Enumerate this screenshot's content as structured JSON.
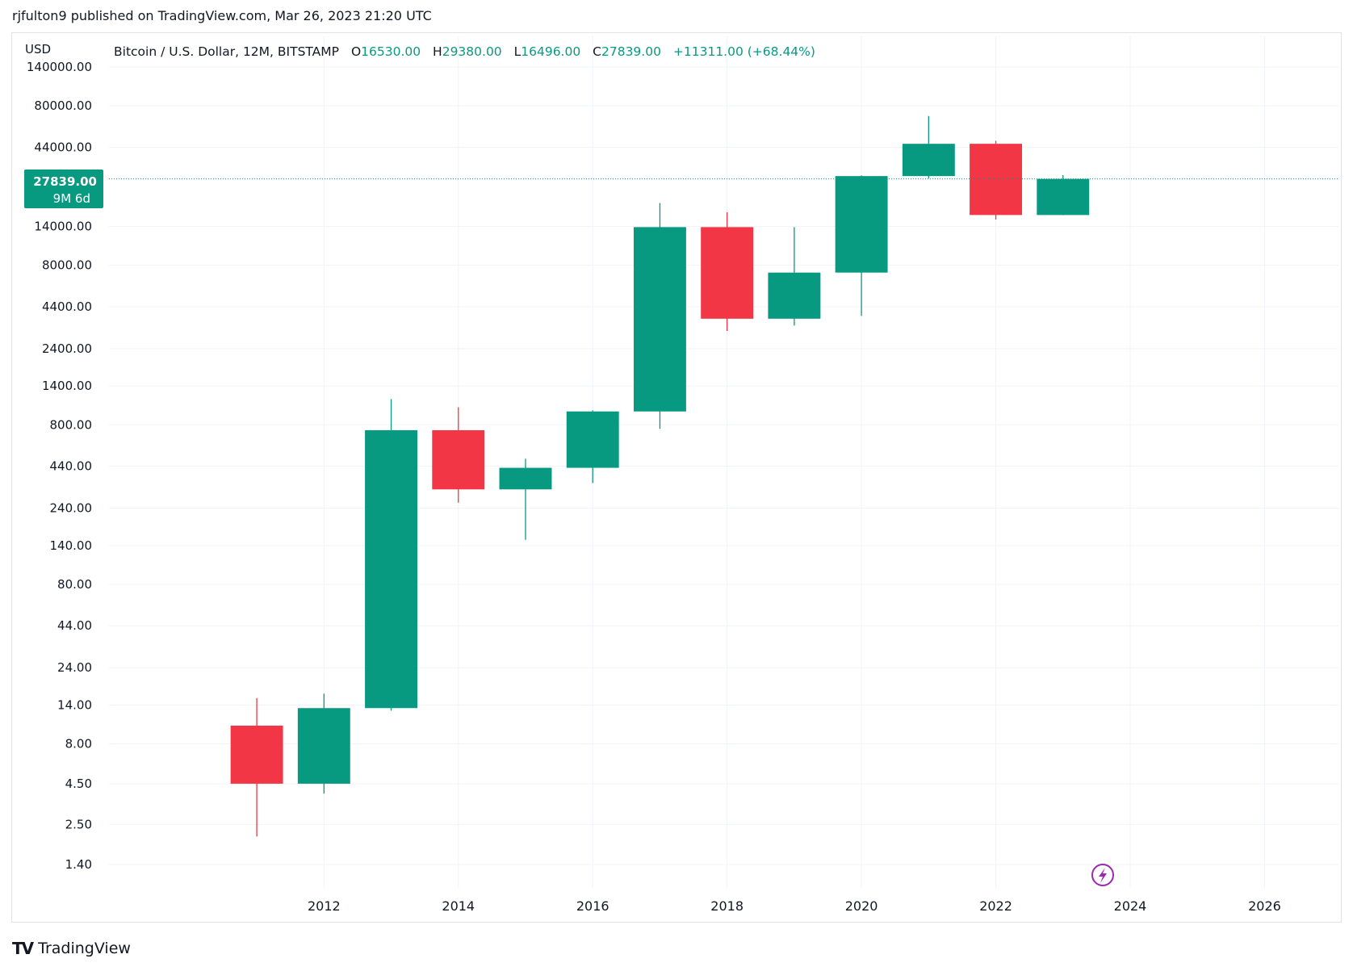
{
  "header": {
    "published": "rjfulton9 published on TradingView.com, Mar 26, 2023 21:20 UTC"
  },
  "legend": {
    "symbol": "Bitcoin / U.S. Dollar, 12M, BITSTAMP",
    "o_label": "O",
    "o_value": "16530.00",
    "h_label": "H",
    "h_value": "29380.00",
    "l_label": "L",
    "l_value": "16496.00",
    "c_label": "C",
    "c_value": "27839.00",
    "change": "+11311.00 (+68.44%)"
  },
  "price_tag": {
    "value": "27839.00",
    "countdown": "9M 6d"
  },
  "footer": {
    "brand": "TradingView",
    "logo_text": "TV"
  },
  "colors": {
    "up": "#089981",
    "down": "#f23645",
    "grid": "#f0f3fa",
    "axis_text": "#131722",
    "lightning": "#9c27b0"
  },
  "chart_data": {
    "type": "candlestick",
    "ylabel": "USD",
    "scale": "log",
    "ylim": [
      1.0,
      140000
    ],
    "xlim": [
      2008.8,
      2027.1
    ],
    "y_ticks": [
      140000,
      80000,
      44000,
      14000,
      8000,
      4400,
      2400,
      1400,
      800,
      440,
      240,
      140,
      80,
      44,
      24,
      14,
      8,
      4.5,
      2.5,
      1.4
    ],
    "y_tick_labels": [
      "140000.00",
      "80000.00",
      "44000.00",
      "14000.00",
      "8000.00",
      "4400.00",
      "2400.00",
      "1400.00",
      "800.00",
      "440.00",
      "240.00",
      "140.00",
      "80.00",
      "44.00",
      "24.00",
      "14.00",
      "8.00",
      "4.50",
      "2.50",
      "1.40"
    ],
    "x_ticks": [
      2012,
      2014,
      2016,
      2018,
      2020,
      2022,
      2024,
      2026
    ],
    "x_tick_labels": [
      "2012",
      "2014",
      "2016",
      "2018",
      "2020",
      "2022",
      "2024",
      "2026"
    ],
    "last_price": 27839,
    "candles": [
      {
        "year": 2011,
        "open": 10.4,
        "high": 15.5,
        "low": 2.1,
        "close": 4.5
      },
      {
        "year": 2012,
        "open": 4.5,
        "high": 16.5,
        "low": 3.9,
        "close": 13.4
      },
      {
        "year": 2013,
        "open": 13.4,
        "high": 1160,
        "low": 12.9,
        "close": 740
      },
      {
        "year": 2014,
        "open": 740,
        "high": 1030,
        "low": 260,
        "close": 315
      },
      {
        "year": 2015,
        "open": 315,
        "high": 490,
        "low": 152,
        "close": 430
      },
      {
        "year": 2016,
        "open": 430,
        "high": 985,
        "low": 345,
        "close": 970
      },
      {
        "year": 2017,
        "open": 970,
        "high": 19666,
        "low": 755,
        "close": 13880
      },
      {
        "year": 2018,
        "open": 13880,
        "high": 17200,
        "low": 3100,
        "close": 3700
      },
      {
        "year": 2019,
        "open": 3700,
        "high": 13880,
        "low": 3350,
        "close": 7200
      },
      {
        "year": 2020,
        "open": 7200,
        "high": 29300,
        "low": 3850,
        "close": 28990
      },
      {
        "year": 2021,
        "open": 28990,
        "high": 69000,
        "low": 28100,
        "close": 46200
      },
      {
        "year": 2022,
        "open": 46200,
        "high": 48200,
        "low": 15480,
        "close": 16530
      },
      {
        "year": 2023,
        "open": 16530,
        "high": 29380,
        "low": 16496,
        "close": 27839
      }
    ]
  }
}
